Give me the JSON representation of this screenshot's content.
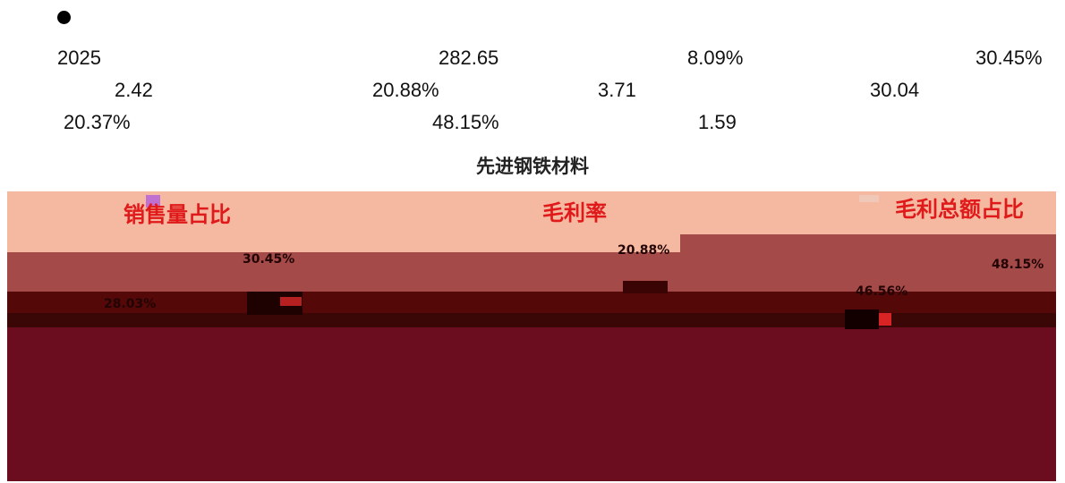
{
  "text_rows": [
    {
      "year": "2025",
      "v1": "282.65",
      "v2": "8.09%",
      "v3": "30.45%"
    },
    {
      "v1": "2.42",
      "v2": "20.88%",
      "v3": "3.71",
      "v4": "30.04"
    },
    {
      "v1": "20.37%",
      "v2": "48.15%",
      "v3": "1.59"
    }
  ],
  "figure": {
    "title": "先进钢铁材料",
    "panels": [
      {
        "title": "销售量占比",
        "values": [
          "30.45%",
          "28.03%"
        ]
      },
      {
        "title": "毛利率",
        "values": [
          "20.88%"
        ]
      },
      {
        "title": "毛利总额占比",
        "values": [
          "48.15%",
          "46.56%"
        ]
      }
    ]
  },
  "colors": {
    "band_light": "#f5b8a0",
    "band_mid": "#a44a48",
    "band_dark": "#540808",
    "figure_bg": "#6b0d1f",
    "panel_title": "#e01a1a"
  }
}
